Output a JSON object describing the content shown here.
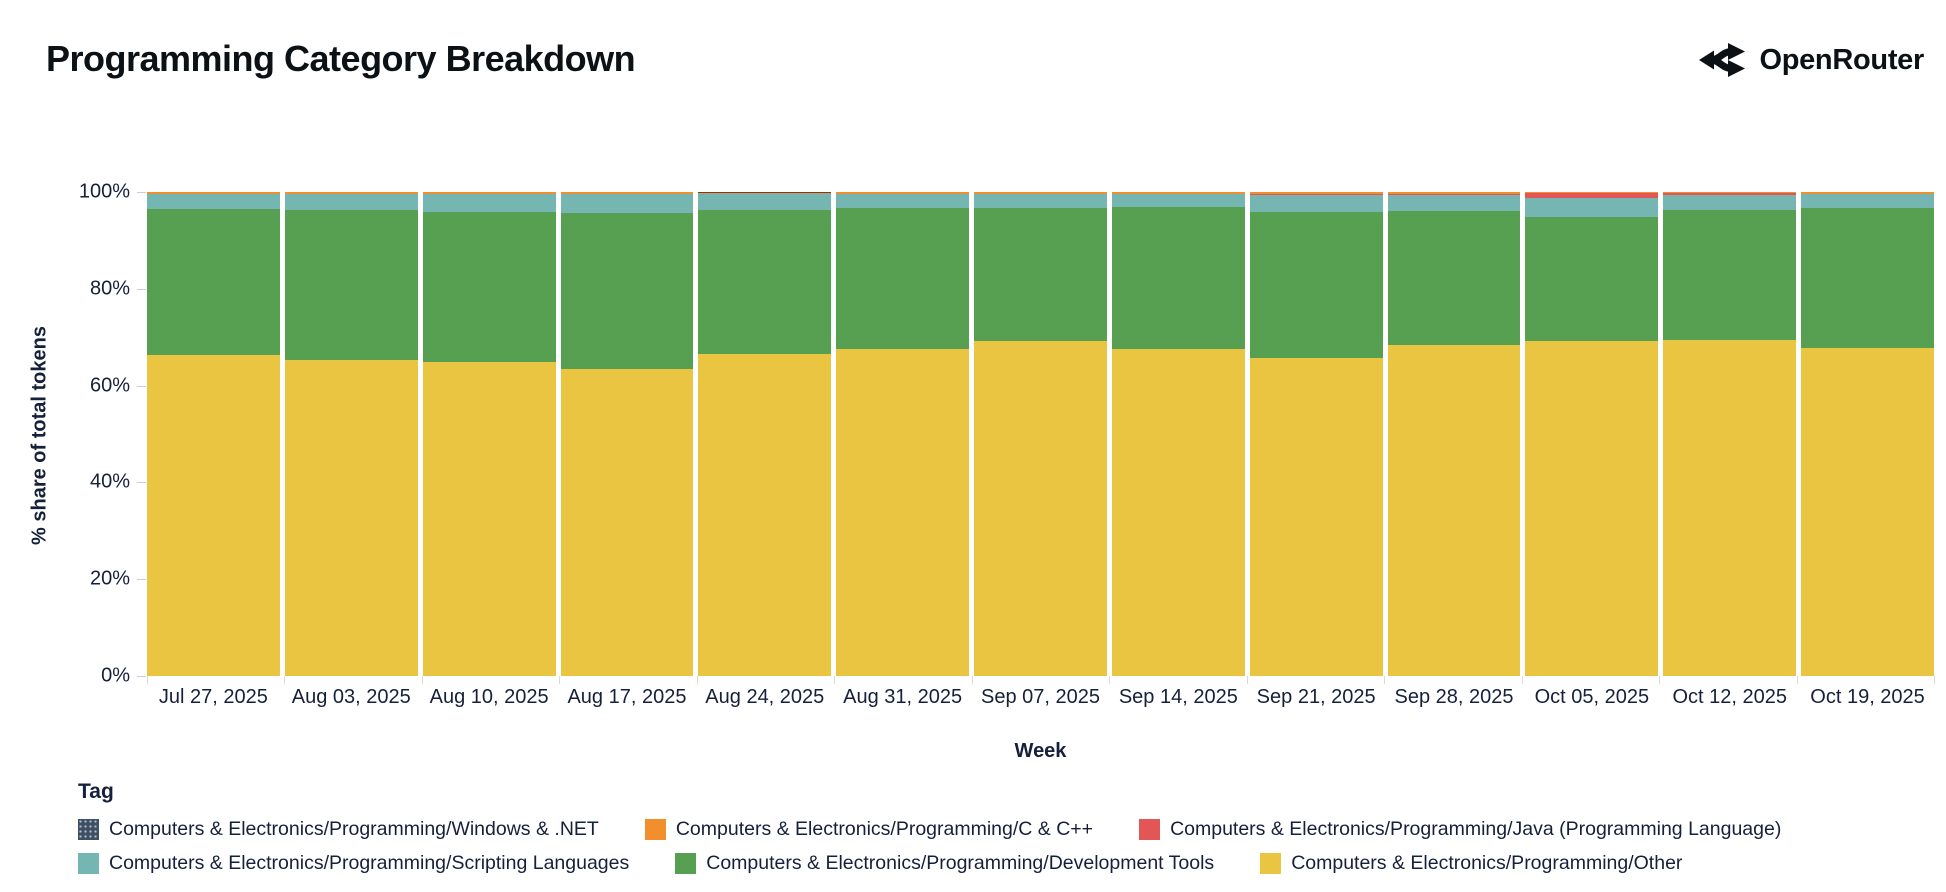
{
  "header": {
    "title": "Programming Category Breakdown",
    "brand": "OpenRouter"
  },
  "chart_data": {
    "type": "bar",
    "stacked": true,
    "orientation": "vertical",
    "title": "Programming Category Breakdown",
    "xlabel": "Week",
    "ylabel": "% share of total tokens",
    "ylim": [
      0,
      100
    ],
    "yticks": [
      "0%",
      "20%",
      "40%",
      "60%",
      "80%",
      "100%"
    ],
    "grid": false,
    "legend_position": "bottom",
    "categories": [
      "Jul 27, 2025",
      "Aug 03, 2025",
      "Aug 10, 2025",
      "Aug 17, 2025",
      "Aug 24, 2025",
      "Aug 31, 2025",
      "Sep 07, 2025",
      "Sep 14, 2025",
      "Sep 21, 2025",
      "Sep 28, 2025",
      "Oct 05, 2025",
      "Oct 12, 2025",
      "Oct 19, 2025"
    ],
    "series": [
      {
        "name": "Computers & Electronics/Programming/Other",
        "color": "#e9c542",
        "values": [
          66.4,
          65.3,
          64.9,
          63.4,
          66.5,
          67.6,
          69.2,
          67.5,
          65.8,
          68.3,
          69.3,
          69.5,
          67.8
        ]
      },
      {
        "name": "Computers & Electronics/Programming/Development Tools",
        "color": "#57a051",
        "values": [
          30.0,
          31.0,
          31.05,
          32.2,
          29.75,
          29.2,
          27.5,
          29.4,
          30.15,
          27.85,
          25.6,
          26.8,
          28.9
        ]
      },
      {
        "name": "Computers & Electronics/Programming/Scripting Languages",
        "color": "#76b6b2",
        "values": [
          3.2,
          3.3,
          3.6,
          3.9,
          3.3,
          2.8,
          2.9,
          2.7,
          3.5,
          3.3,
          3.8,
          3.0,
          2.9
        ]
      },
      {
        "name": "Computers & Electronics/Programming/Java (Programming Language)",
        "color": "#e25756",
        "values": [
          0.05,
          0.05,
          0.05,
          0.1,
          0.05,
          0.05,
          0.05,
          0.05,
          0.1,
          0.1,
          1.0,
          0.6,
          0.05
        ]
      },
      {
        "name": "Computers & Electronics/Programming/C & C++",
        "color": "#f28e2b",
        "values": [
          0.3,
          0.3,
          0.35,
          0.35,
          0.3,
          0.3,
          0.3,
          0.3,
          0.4,
          0.4,
          0.25,
          0.05,
          0.3
        ]
      },
      {
        "name": "Computers & Electronics/Programming/Windows & .NET",
        "color": "#3e4e63",
        "values": [
          0.05,
          0.05,
          0.05,
          0.05,
          0.1,
          0.05,
          0.05,
          0.05,
          0.05,
          0.05,
          0.05,
          0.05,
          0.05
        ]
      }
    ]
  },
  "legend": {
    "title": "Tag",
    "rows": [
      [
        {
          "label": "Computers & Electronics/Programming/Windows & .NET",
          "color": "#3e4e63",
          "pattern": true
        },
        {
          "label": "Computers & Electronics/Programming/C & C++",
          "color": "#f28e2b",
          "pattern": false
        },
        {
          "label": "Computers & Electronics/Programming/Java (Programming Language)",
          "color": "#e25756",
          "pattern": false
        }
      ],
      [
        {
          "label": "Computers & Electronics/Programming/Scripting Languages",
          "color": "#76b6b2",
          "pattern": false
        },
        {
          "label": "Computers & Electronics/Programming/Development Tools",
          "color": "#57a051",
          "pattern": false
        },
        {
          "label": "Computers & Electronics/Programming/Other",
          "color": "#e9c542",
          "pattern": false
        }
      ]
    ]
  },
  "colors": {
    "other": "#e9c542",
    "development_tools": "#57a051",
    "scripting_languages": "#76b6b2",
    "java": "#e25756",
    "c_cpp": "#f28e2b",
    "windows_dotnet": "#3e4e63",
    "text": "#16203a",
    "tick": "#c9ced6"
  }
}
